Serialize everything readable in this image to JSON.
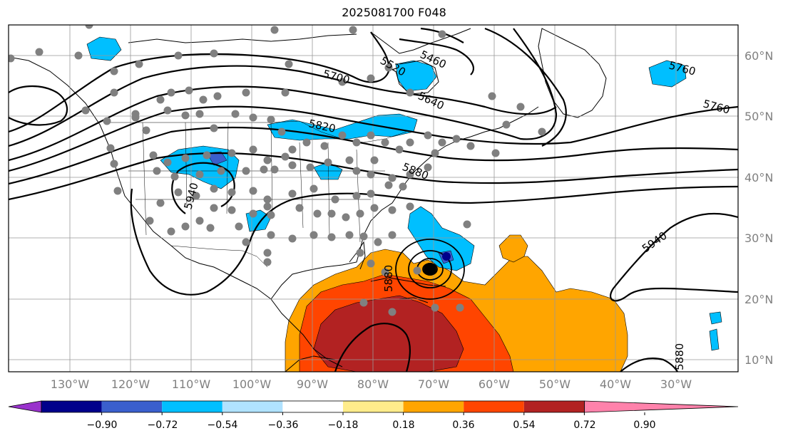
{
  "title": "2025081700 F048",
  "longitude_labels": [
    "130°W",
    "120°W",
    "110°W",
    "100°W",
    "90°W",
    "80°W",
    "70°W",
    "60°W",
    "50°W",
    "40°W",
    "30°W"
  ],
  "latitude_labels": [
    "60°N",
    "50°N",
    "40°N",
    "30°N",
    "20°N",
    "10°N"
  ],
  "contour_labels": [
    "5520",
    "5460",
    "5700",
    "5640",
    "5760",
    "5760",
    "5820",
    "5880",
    "5940",
    "5940",
    "5880",
    "5880"
  ],
  "colorbar": {
    "ticks": [
      "−0.90",
      "−0.72",
      "−0.54",
      "−0.36",
      "−0.18",
      "0.18",
      "0.36",
      "0.54",
      "0.72",
      "0.90"
    ],
    "colors": [
      "#9932cc",
      "#00008b",
      "#3a5fcd",
      "#00bfff",
      "#b0e2ff",
      "#ffffff",
      "#ffec8b",
      "#ffa500",
      "#ff4500",
      "#b22222",
      "#ff82ab"
    ]
  },
  "fill_colors": {
    "neg_light": "#00bfff",
    "neg_dark": "#3a5fcd",
    "neg_darkest": "#00008b",
    "pos_orange": "#ffa500",
    "pos_redorange": "#ff4500",
    "pos_red": "#b22222",
    "station_dot": "#808080"
  }
}
